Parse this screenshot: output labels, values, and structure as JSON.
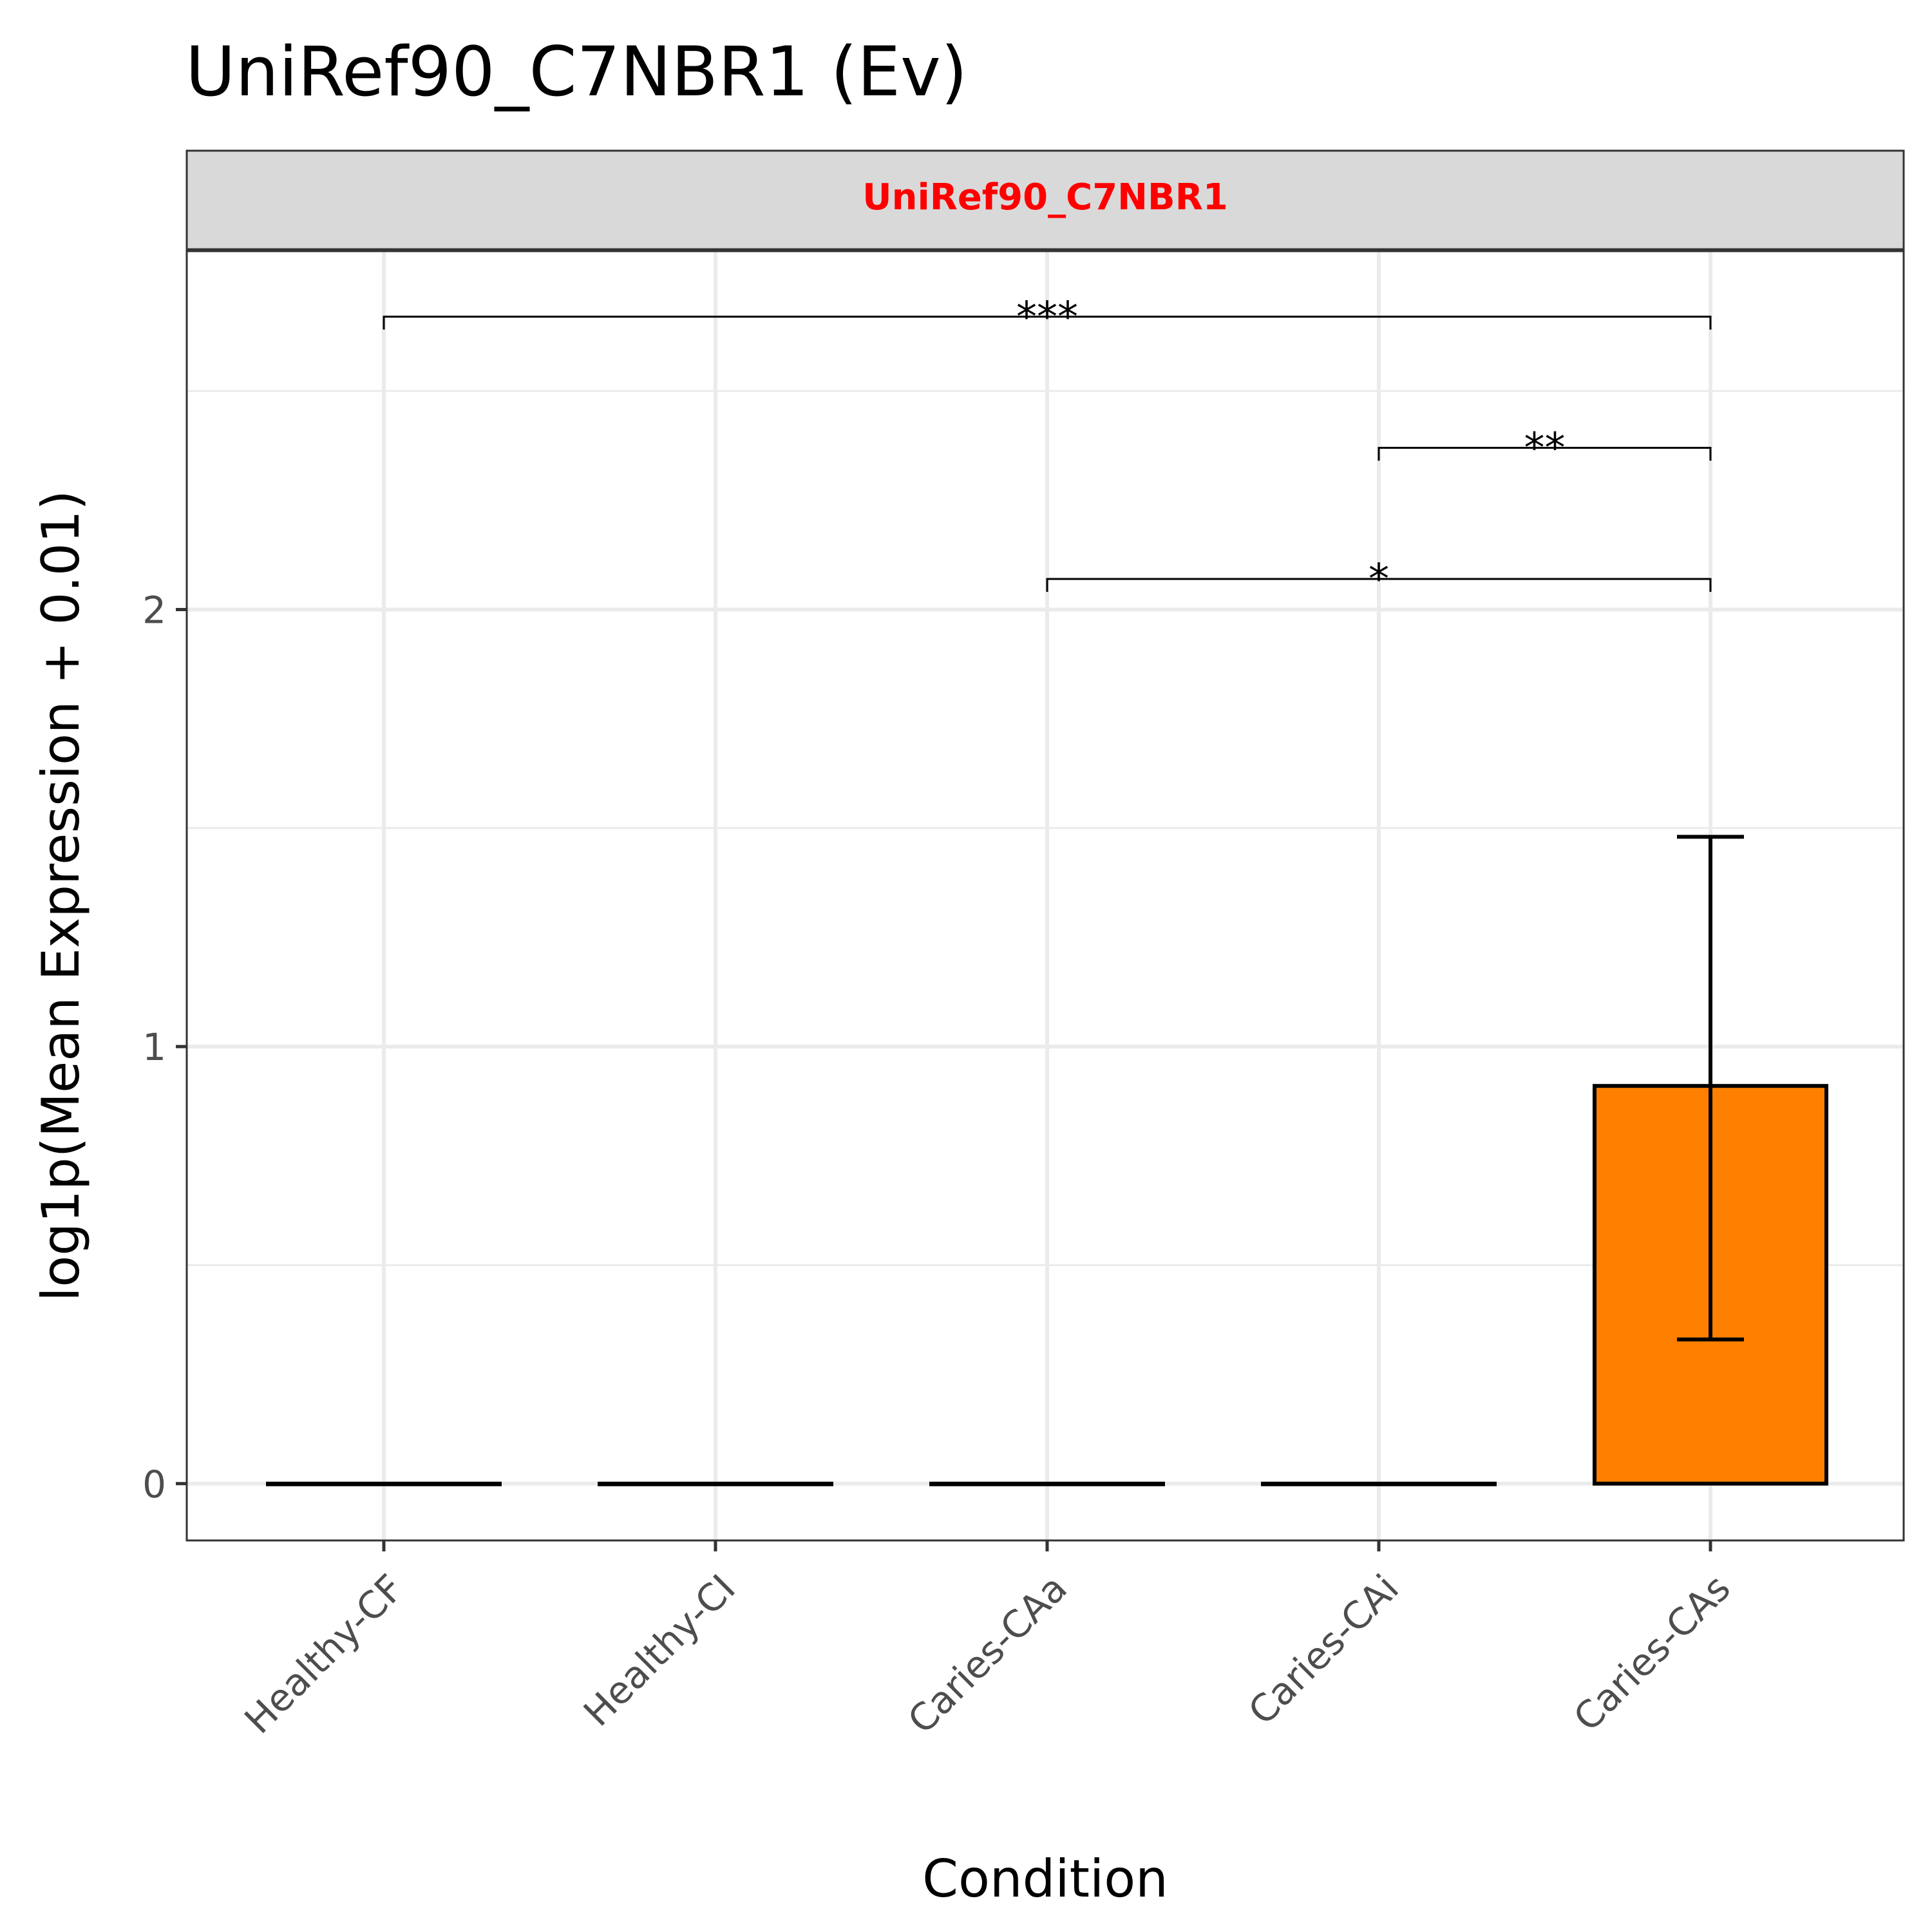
{
  "chart_data": {
    "type": "bar",
    "title": "UniRef90_C7NBR1 (Ev)",
    "facet_label": "UniRef90_C7NBR1",
    "xlabel": "Condition",
    "ylabel": "log1p(Mean Expression + 0.01)",
    "categories": [
      "Healthy-CF",
      "Healthy-CI",
      "Caries-CAa",
      "Caries-CAi",
      "Caries-CAs"
    ],
    "values": [
      0,
      0,
      0,
      0,
      0.91
    ],
    "error_bars": [
      {
        "category": "Caries-CAs",
        "low": 0.33,
        "high": 1.48
      }
    ],
    "ylim": [
      -0.13,
      2.82
    ],
    "yticks": [
      0,
      1,
      2
    ],
    "grid": true,
    "legend": "none",
    "significance": [
      {
        "from": "Healthy-CF",
        "to": "Caries-CAs",
        "y": 2.67,
        "label": "***"
      },
      {
        "from": "Caries-CAi",
        "to": "Caries-CAs",
        "y": 2.37,
        "label": "**"
      },
      {
        "from": "Caries-CAa",
        "to": "Caries-CAs",
        "y": 2.07,
        "label": "*"
      }
    ],
    "colors": {
      "bar_fill": "#FF8000",
      "bar_outline": "#000000",
      "strip_fill": "#D9D9D9",
      "strip_text": "#FF0000",
      "grid": "#EBEBEB",
      "panel_border": "#333333"
    }
  }
}
